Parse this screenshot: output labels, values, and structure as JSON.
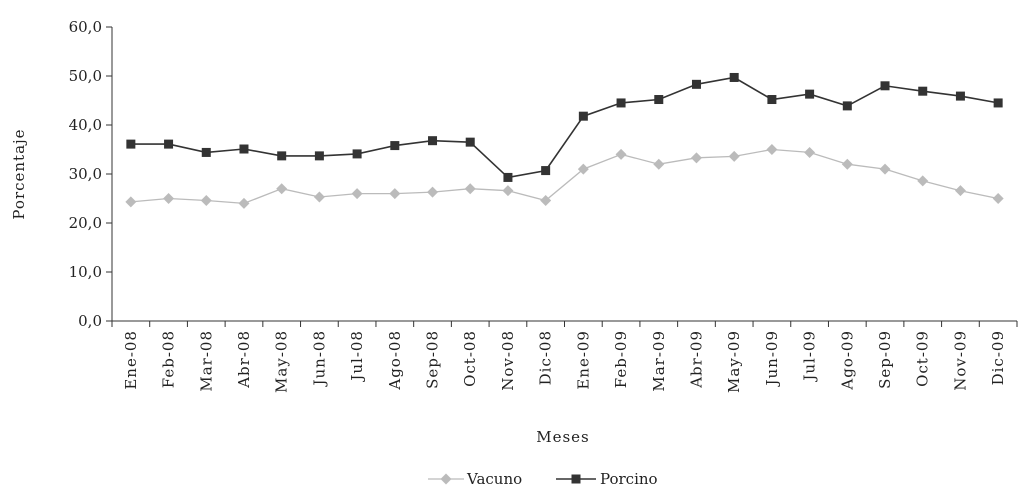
{
  "chart_data": {
    "type": "line",
    "xlabel": "Meses",
    "ylabel": "Porcentaje",
    "ylim": [
      0,
      60
    ],
    "yticks": [
      "0,0",
      "10,0",
      "20,0",
      "30,0",
      "40,0",
      "50,0",
      "60,0"
    ],
    "grid": false,
    "legend_position": "bottom",
    "categories": [
      "Ene-08",
      "Feb-08",
      "Mar-08",
      "Abr-08",
      "May-08",
      "Jun-08",
      "Jul-08",
      "Ago-08",
      "Sep-08",
      "Oct-08",
      "Nov-08",
      "Dic-08",
      "Ene-09",
      "Feb-09",
      "Mar-09",
      "Abr-09",
      "May-09",
      "Jun-09",
      "Jul-09",
      "Ago-09",
      "Sep-09",
      "Oct-09",
      "Nov-09",
      "Dic-09"
    ],
    "series": [
      {
        "name": "Vacuno",
        "color": "#bbbbbb",
        "marker": "diamond",
        "values": [
          24.3,
          25.0,
          24.6,
          24.0,
          27.0,
          25.3,
          26.0,
          26.0,
          26.3,
          27.0,
          26.6,
          24.6,
          31.0,
          34.0,
          32.0,
          33.3,
          33.6,
          35.0,
          34.4,
          32.0,
          31.0,
          28.6,
          26.6,
          25.0
        ]
      },
      {
        "name": "Porcino",
        "color": "#333333",
        "marker": "square",
        "values": [
          36.1,
          36.1,
          34.4,
          35.1,
          33.7,
          33.7,
          34.1,
          35.8,
          36.8,
          36.5,
          29.3,
          30.7,
          41.8,
          44.5,
          45.2,
          48.3,
          49.7,
          45.2,
          46.3,
          43.9,
          48.0,
          46.9,
          45.9,
          44.5
        ]
      }
    ]
  }
}
